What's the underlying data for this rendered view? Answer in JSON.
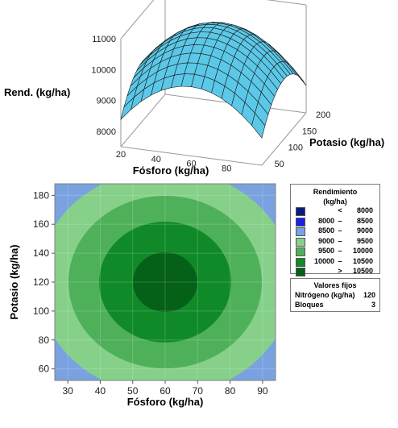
{
  "chart_data": [
    {
      "type": "surface",
      "zlabel": "Rend. (kg/ha)",
      "xlabel": "Fósforo (kg/ha)",
      "ylabel": "Potasio (kg/ha)",
      "zticks": [
        "8000",
        "9000",
        "10000",
        "11000"
      ],
      "xticks": [
        "20",
        "40",
        "60",
        "80"
      ],
      "yticks": [
        "50",
        "100",
        "150",
        "200"
      ],
      "zlim": [
        7500,
        11000
      ],
      "surface_color": "#5bc8e8",
      "peak": {
        "x": 60,
        "y": 120,
        "z": 10800
      }
    },
    {
      "type": "contour",
      "xlabel": "Fósforo (kg/ha)",
      "ylabel": "Potasio (kg/ha)",
      "xlim": [
        26,
        94
      ],
      "ylim": [
        52,
        188
      ],
      "xticks": [
        "30",
        "40",
        "50",
        "60",
        "70",
        "80",
        "90"
      ],
      "yticks": [
        "60",
        "80",
        "100",
        "120",
        "140",
        "160",
        "180"
      ],
      "center": {
        "x": 60,
        "y": 120
      },
      "levels": [
        {
          "from": "<",
          "to": "8000",
          "color": "#0a1a80"
        },
        {
          "from": "8000",
          "to": "8500",
          "color": "#1a22e0"
        },
        {
          "from": "8500",
          "to": "9000",
          "color": "#7aa2e0"
        },
        {
          "from": "9000",
          "to": "9500",
          "color": "#86d08a"
        },
        {
          "from": "9500",
          "to": "10000",
          "color": "#4fb05a"
        },
        {
          "from": "10000",
          "to": "10500",
          "color": "#108a28"
        },
        {
          "from": ">",
          "to": "10500",
          "color": "#056018"
        }
      ]
    }
  ],
  "legend": {
    "title_line1": "Rendimiento",
    "title_line2": "(kg/ha)",
    "dash": "–"
  },
  "fixed_values": {
    "title": "Valores fijos",
    "rows": [
      {
        "name": "Nitrógeno (kg/ha)",
        "value": "120"
      },
      {
        "name": "Bloques",
        "value": "3"
      }
    ]
  }
}
